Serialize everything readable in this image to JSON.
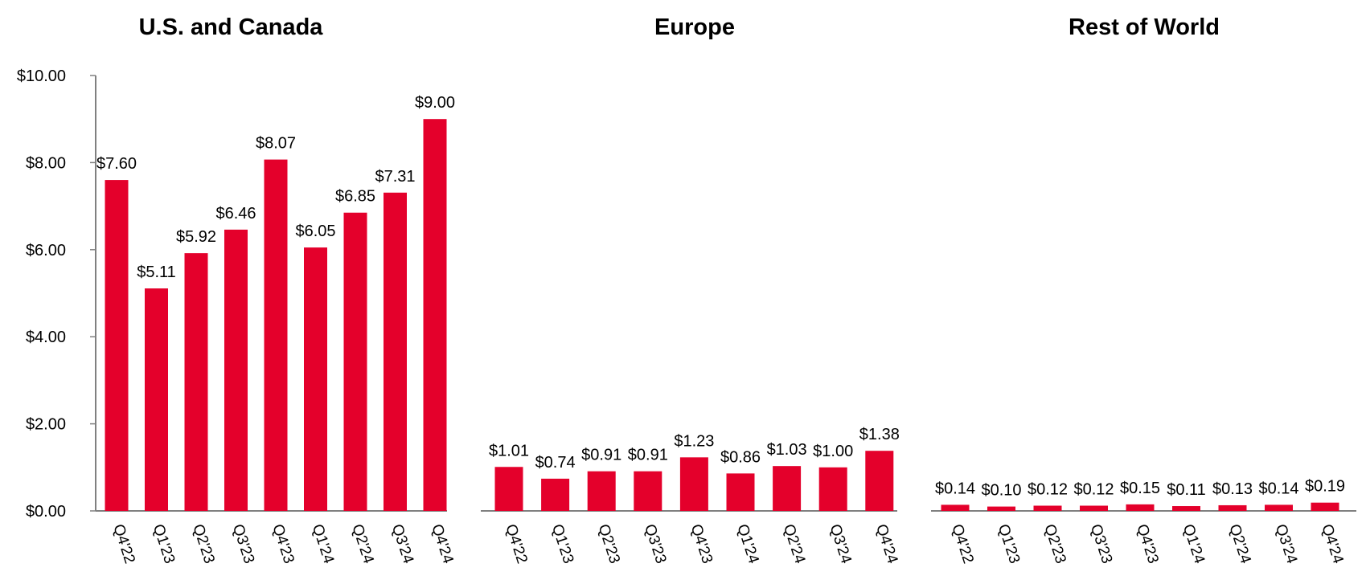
{
  "chart_data": {
    "type": "bar",
    "y_ticks": [
      "$0.00",
      "$2.00",
      "$4.00",
      "$6.00",
      "$8.00",
      "$10.00"
    ],
    "ylim": [
      0,
      10
    ],
    "grid": false,
    "legend": "none",
    "bar_color": "#E4002B",
    "axis_color": "#808080",
    "charts": [
      {
        "title": "U.S. and Canada",
        "categories": [
          "Q4'22",
          "Q1'23",
          "Q2'23",
          "Q3'23",
          "Q4'23",
          "Q1'24",
          "Q2'24",
          "Q3'24",
          "Q4'24"
        ],
        "values": [
          7.6,
          5.11,
          5.92,
          6.46,
          8.07,
          6.05,
          6.85,
          7.31,
          9.0
        ],
        "labels": [
          "$7.60",
          "$5.11",
          "$5.92",
          "$6.46",
          "$8.07",
          "$6.05",
          "$6.85",
          "$7.31",
          "$9.00"
        ]
      },
      {
        "title": "Europe",
        "categories": [
          "Q4'22",
          "Q1'23",
          "Q2'23",
          "Q3'23",
          "Q4'23",
          "Q1'24",
          "Q2'24",
          "Q3'24",
          "Q4'24"
        ],
        "values": [
          1.01,
          0.74,
          0.91,
          0.91,
          1.23,
          0.86,
          1.03,
          1.0,
          1.38
        ],
        "labels": [
          "$1.01",
          "$0.74",
          "$0.91",
          "$0.91",
          "$1.23",
          "$0.86",
          "$1.03",
          "$1.00",
          "$1.38"
        ]
      },
      {
        "title": "Rest of World",
        "categories": [
          "Q4'22",
          "Q1'23",
          "Q2'23",
          "Q3'23",
          "Q4'23",
          "Q1'24",
          "Q2'24",
          "Q3'24",
          "Q4'24"
        ],
        "values": [
          0.14,
          0.1,
          0.12,
          0.12,
          0.15,
          0.11,
          0.13,
          0.14,
          0.19
        ],
        "labels": [
          "$0.14",
          "$0.10",
          "$0.12",
          "$0.12",
          "$0.15",
          "$0.11",
          "$0.13",
          "$0.14",
          "$0.19"
        ]
      }
    ]
  }
}
